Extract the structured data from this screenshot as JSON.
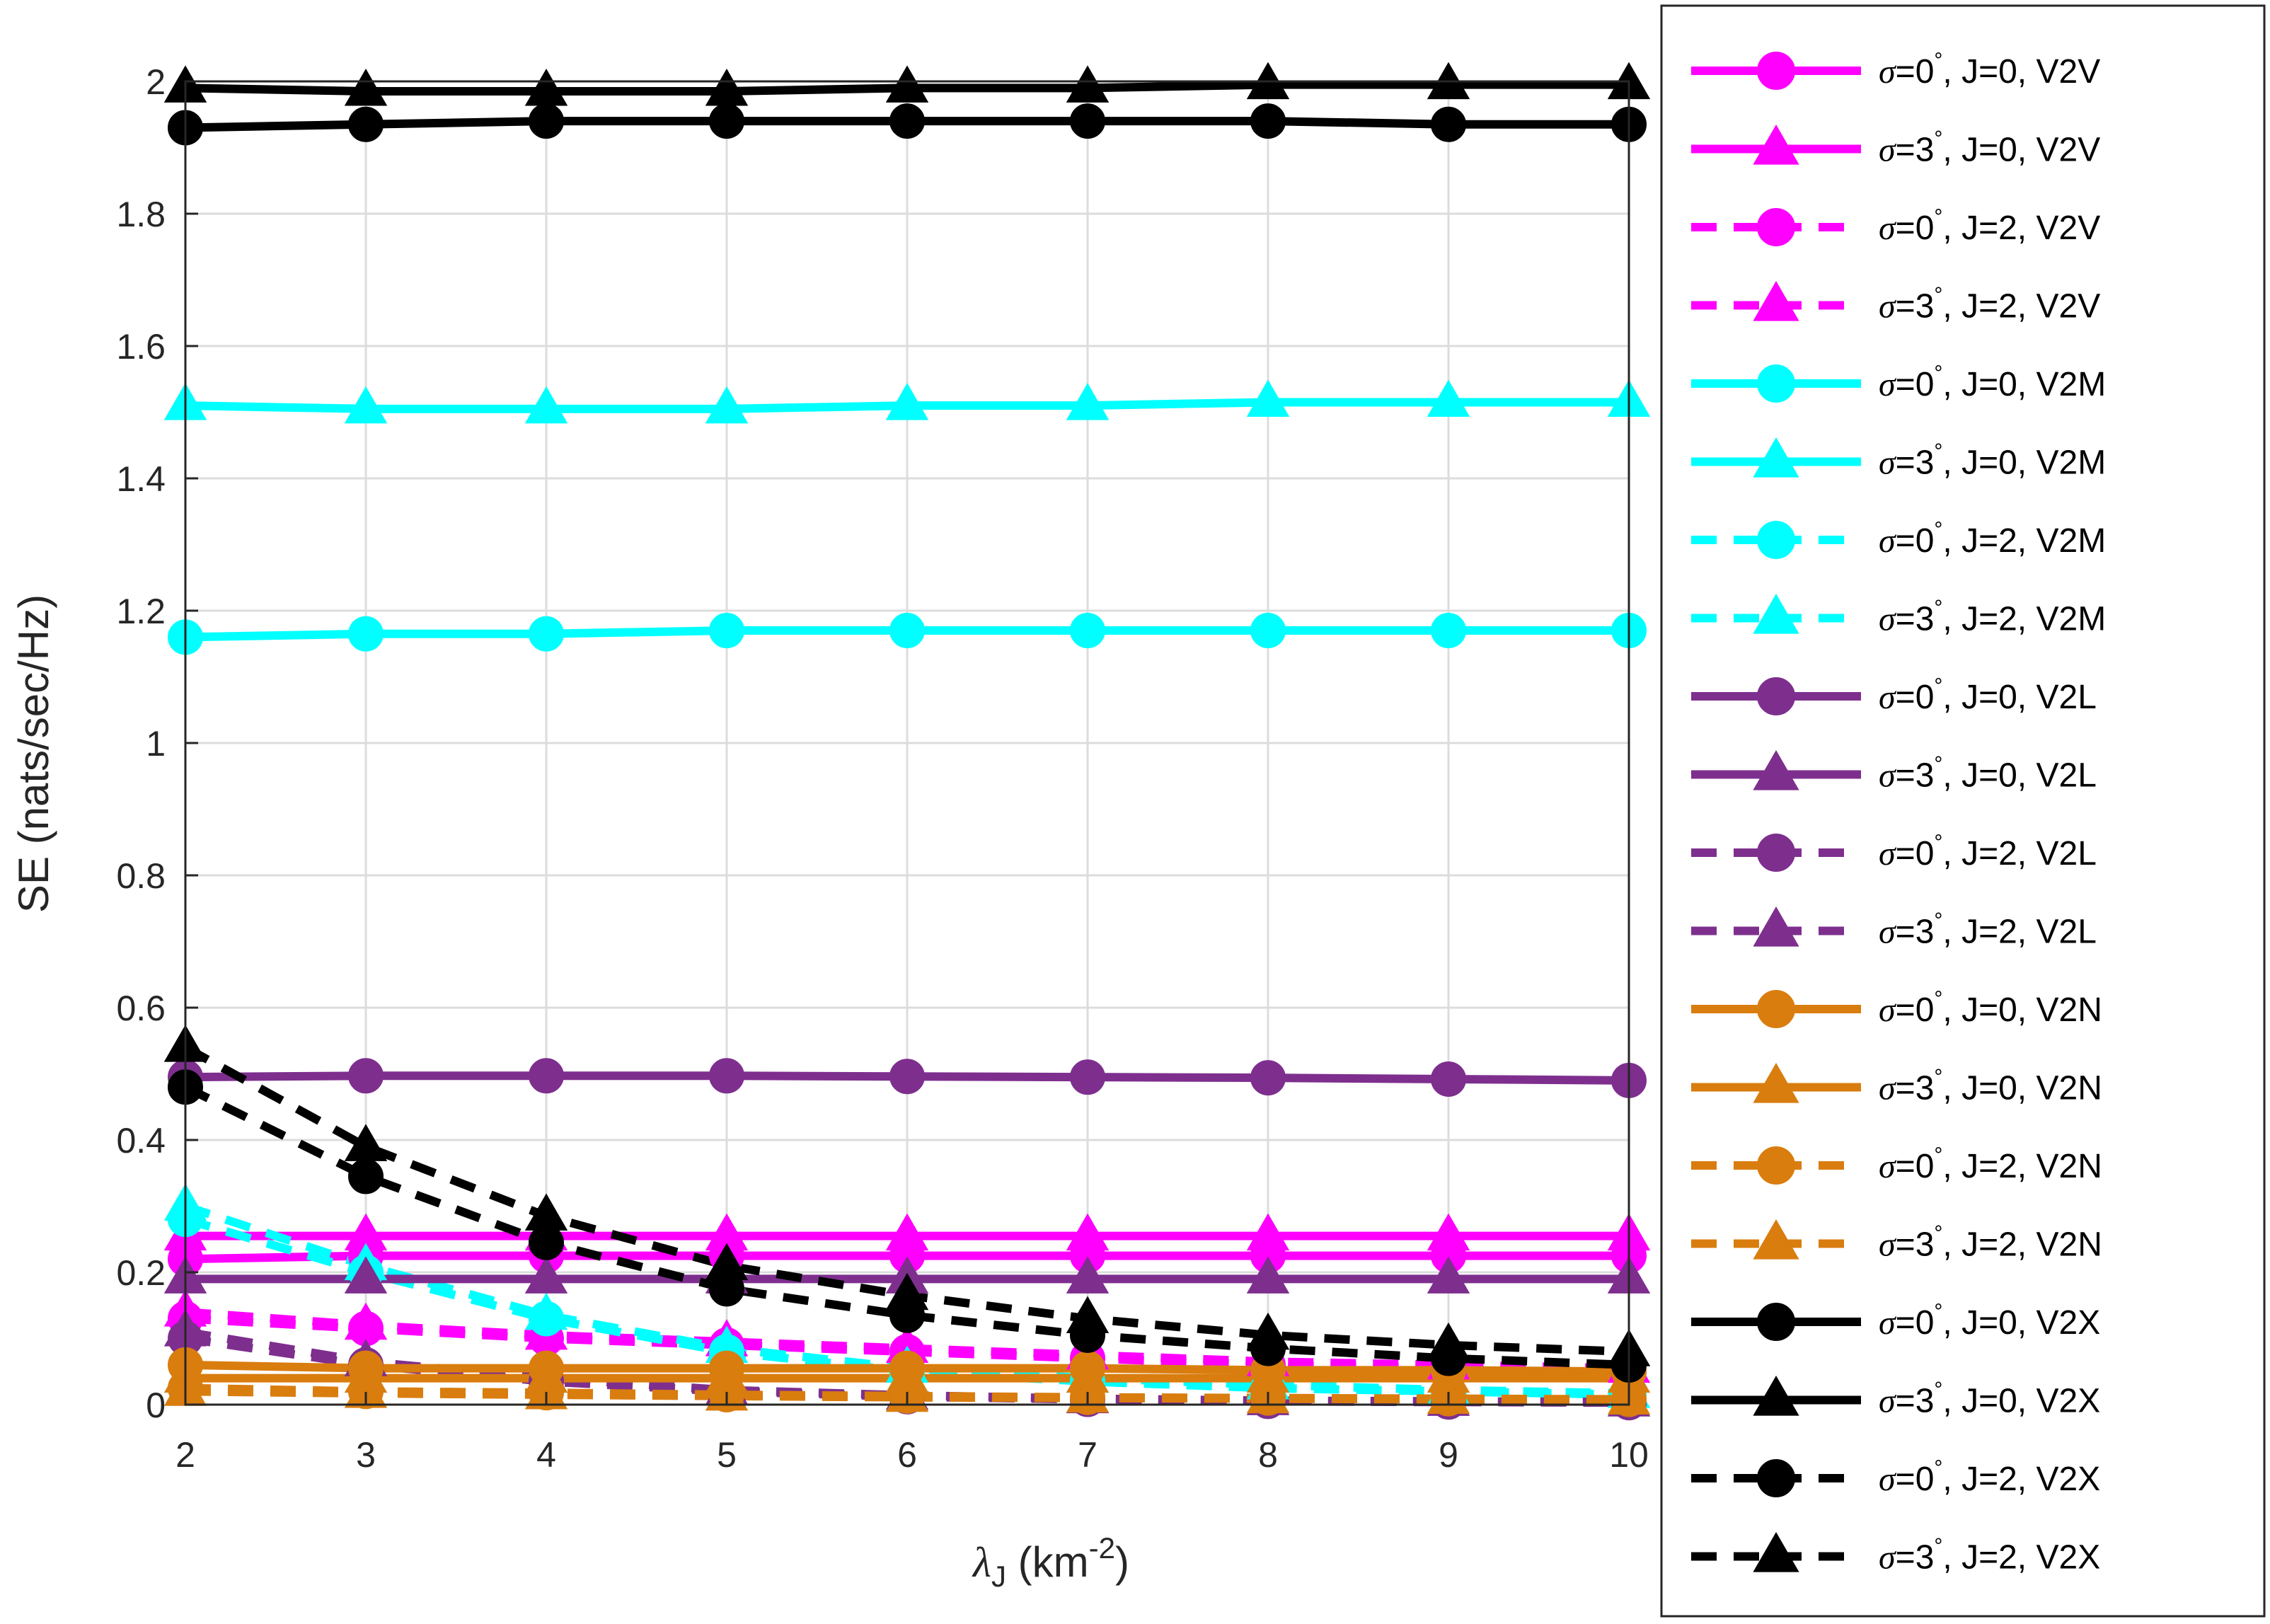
{
  "chart_data": {
    "type": "line",
    "title": "",
    "xlabel": {
      "symbol": "λ",
      "subscript": "J",
      "text": " (km",
      "superscript": "-2",
      "close": ")"
    },
    "ylabel": "SE (nats/sec/Hz)",
    "xlim": [
      2,
      10
    ],
    "ylim": [
      0,
      2
    ],
    "xticks": [
      2,
      3,
      4,
      5,
      6,
      7,
      8,
      9,
      10
    ],
    "xtick_labels": [
      "2",
      "3",
      "4",
      "5",
      "6",
      "7",
      "8",
      "9",
      "10"
    ],
    "yticks": [
      0,
      0.2,
      0.4,
      0.6,
      0.8,
      1,
      1.2,
      1.4,
      1.6,
      1.8,
      2
    ],
    "ytick_labels": [
      "0",
      "0.2",
      "0.4",
      "0.6",
      "0.8",
      "1",
      "1.2",
      "1.4",
      "1.6",
      "1.8",
      "2"
    ],
    "grid": true,
    "legend_position": "right",
    "x": [
      2,
      3,
      4,
      5,
      6,
      7,
      8,
      9,
      10
    ],
    "series": [
      {
        "name": "σ=0°, J=0, V2V",
        "sigma": "σ",
        "label": "=0",
        "rest": ", J=0, V2V",
        "color": "#ff00ff",
        "marker": "circle",
        "dash": false,
        "values": [
          0.22,
          0.225,
          0.225,
          0.225,
          0.225,
          0.225,
          0.225,
          0.225,
          0.225
        ]
      },
      {
        "name": "σ=3°, J=0, V2V",
        "sigma": "σ",
        "label": "=3",
        "rest": ", J=0, V2V",
        "color": "#ff00ff",
        "marker": "triangle",
        "dash": false,
        "values": [
          0.255,
          0.255,
          0.255,
          0.255,
          0.255,
          0.255,
          0.255,
          0.255,
          0.255
        ]
      },
      {
        "name": "σ=0°, J=2, V2V",
        "sigma": "σ",
        "label": "=0",
        "rest": ", J=2, V2V",
        "color": "#ff00ff",
        "marker": "circle",
        "dash": true,
        "values": [
          0.13,
          0.115,
          0.1,
          0.09,
          0.08,
          0.07,
          0.06,
          0.055,
          0.05
        ]
      },
      {
        "name": "σ=3°, J=2, V2V",
        "sigma": "σ",
        "label": "=3",
        "rest": ", J=2, V2V",
        "color": "#ff00ff",
        "marker": "triangle",
        "dash": true,
        "values": [
          0.14,
          0.12,
          0.105,
          0.095,
          0.085,
          0.075,
          0.065,
          0.06,
          0.055
        ]
      },
      {
        "name": "σ=0°, J=0, V2M",
        "sigma": "σ",
        "label": "=0",
        "rest": ", J=0, V2M",
        "color": "#00ffff",
        "marker": "circle",
        "dash": false,
        "values": [
          1.16,
          1.165,
          1.165,
          1.17,
          1.17,
          1.17,
          1.17,
          1.17,
          1.17
        ]
      },
      {
        "name": "σ=3°, J=0, V2M",
        "sigma": "σ",
        "label": "=3",
        "rest": ", J=0, V2M",
        "color": "#00ffff",
        "marker": "triangle",
        "dash": false,
        "values": [
          1.51,
          1.505,
          1.505,
          1.505,
          1.51,
          1.51,
          1.515,
          1.515,
          1.515
        ]
      },
      {
        "name": "σ=0°, J=2, V2M",
        "sigma": "σ",
        "label": "=0",
        "rest": ", J=2, V2M",
        "color": "#00ffff",
        "marker": "circle",
        "dash": true,
        "values": [
          0.28,
          0.2,
          0.13,
          0.08,
          0.05,
          0.035,
          0.025,
          0.02,
          0.015
        ]
      },
      {
        "name": "σ=3°, J=2, V2M",
        "sigma": "σ",
        "label": "=3",
        "rest": ", J=2, V2M",
        "color": "#00ffff",
        "marker": "triangle",
        "dash": true,
        "values": [
          0.3,
          0.21,
          0.135,
          0.085,
          0.055,
          0.04,
          0.03,
          0.022,
          0.017
        ]
      },
      {
        "name": "σ=0°, J=0, V2L",
        "sigma": "σ",
        "label": "=0",
        "rest": ", J=0, V2L",
        "color": "#7e2f8e",
        "marker": "circle",
        "dash": false,
        "values": [
          0.495,
          0.497,
          0.497,
          0.497,
          0.496,
          0.495,
          0.494,
          0.492,
          0.49
        ]
      },
      {
        "name": "σ=3°, J=0, V2L",
        "sigma": "σ",
        "label": "=3",
        "rest": ", J=0, V2L",
        "color": "#7e2f8e",
        "marker": "triangle",
        "dash": false,
        "values": [
          0.19,
          0.19,
          0.19,
          0.19,
          0.19,
          0.19,
          0.19,
          0.19,
          0.19
        ]
      },
      {
        "name": "σ=0°, J=2, V2L",
        "sigma": "σ",
        "label": "=0",
        "rest": ", J=2, V2L",
        "color": "#7e2f8e",
        "marker": "circle",
        "dash": true,
        "values": [
          0.1,
          0.06,
          0.035,
          0.02,
          0.012,
          0.008,
          0.005,
          0.004,
          0.003
        ]
      },
      {
        "name": "σ=3°, J=2, V2L",
        "sigma": "σ",
        "label": "=3",
        "rest": ", J=2, V2L",
        "color": "#7e2f8e",
        "marker": "triangle",
        "dash": true,
        "values": [
          0.11,
          0.065,
          0.04,
          0.022,
          0.014,
          0.009,
          0.006,
          0.005,
          0.004
        ]
      },
      {
        "name": "σ=0°, J=0, V2N",
        "sigma": "σ",
        "label": "=0",
        "rest": ", J=0, V2N",
        "color": "#d97d0f",
        "marker": "circle",
        "dash": false,
        "values": [
          0.06,
          0.055,
          0.055,
          0.055,
          0.055,
          0.055,
          0.052,
          0.052,
          0.05
        ]
      },
      {
        "name": "σ=3°, J=0, V2N",
        "sigma": "σ",
        "label": "=3",
        "rest": ", J=0, V2N",
        "color": "#d97d0f",
        "marker": "triangle",
        "dash": false,
        "values": [
          0.04,
          0.04,
          0.04,
          0.04,
          0.04,
          0.04,
          0.04,
          0.04,
          0.04
        ]
      },
      {
        "name": "σ=0°, J=2, V2N",
        "sigma": "σ",
        "label": "=0",
        "rest": ", J=2, V2N",
        "color": "#d97d0f",
        "marker": "circle",
        "dash": true,
        "values": [
          0.025,
          0.02,
          0.018,
          0.015,
          0.013,
          0.011,
          0.01,
          0.009,
          0.008
        ]
      },
      {
        "name": "σ=3°, J=2, V2N",
        "sigma": "σ",
        "label": "=3",
        "rest": ", J=2, V2N",
        "color": "#d97d0f",
        "marker": "triangle",
        "dash": true,
        "values": [
          0.02,
          0.017,
          0.015,
          0.013,
          0.011,
          0.01,
          0.009,
          0.008,
          0.007
        ]
      },
      {
        "name": "σ=0°, J=0, V2X",
        "sigma": "σ",
        "label": "=0",
        "rest": ", J=0, V2X",
        "color": "#000000",
        "marker": "circle",
        "dash": false,
        "values": [
          1.93,
          1.935,
          1.94,
          1.94,
          1.94,
          1.94,
          1.94,
          1.935,
          1.935
        ]
      },
      {
        "name": "σ=3°, J=0, V2X",
        "sigma": "σ",
        "label": "=3",
        "rest": ", J=0, V2X",
        "color": "#000000",
        "marker": "triangle",
        "dash": false,
        "values": [
          1.99,
          1.985,
          1.985,
          1.985,
          1.99,
          1.99,
          1.995,
          1.995,
          1.995
        ]
      },
      {
        "name": "σ=0°, J=2, V2X",
        "sigma": "σ",
        "label": "=0",
        "rest": ", J=2, V2X",
        "color": "#000000",
        "marker": "circle",
        "dash": true,
        "values": [
          0.48,
          0.345,
          0.245,
          0.175,
          0.135,
          0.105,
          0.085,
          0.07,
          0.06
        ]
      },
      {
        "name": "σ=3°, J=2, V2X",
        "sigma": "σ",
        "label": "=3",
        "rest": ", J=2, V2X",
        "color": "#000000",
        "marker": "triangle",
        "dash": true,
        "values": [
          0.54,
          0.39,
          0.285,
          0.21,
          0.165,
          0.13,
          0.105,
          0.09,
          0.08
        ]
      }
    ]
  }
}
